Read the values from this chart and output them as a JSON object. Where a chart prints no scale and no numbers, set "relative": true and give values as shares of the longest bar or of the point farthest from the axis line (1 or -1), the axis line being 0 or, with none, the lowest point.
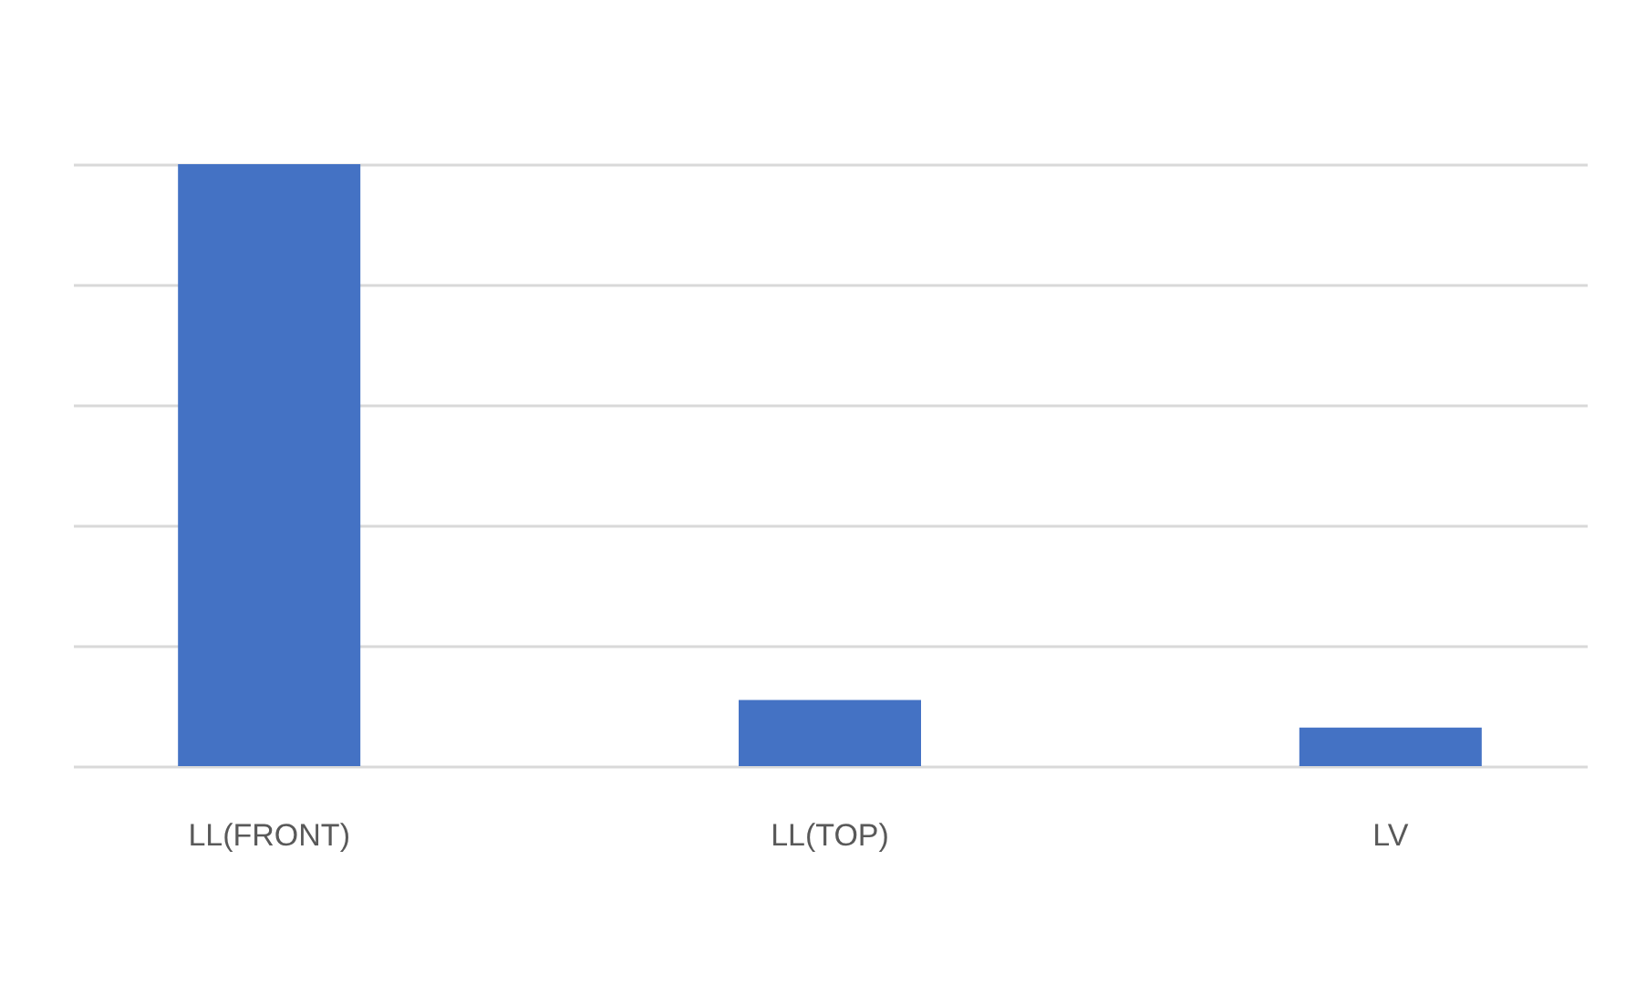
{
  "chart_data": {
    "type": "bar",
    "categories": [
      "LL(FRONT)",
      "LL(TOP)",
      "LV"
    ],
    "values": [
      1,
      0.11,
      0.064
    ],
    "color": "#4472c4",
    "relative": true,
    "grid": "y"
  }
}
